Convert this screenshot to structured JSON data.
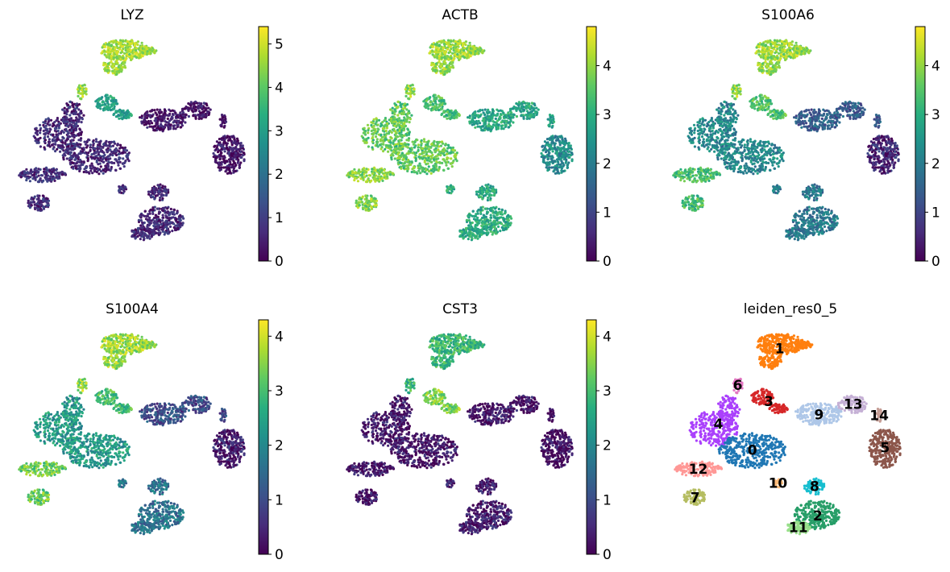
{
  "chart_data": [
    {
      "type": "scatter",
      "title": "LYZ",
      "colorbar": {
        "colormap": "viridis",
        "range": [
          0,
          5.4
        ],
        "ticks": [
          "0",
          "1",
          "2",
          "3",
          "4",
          "5"
        ]
      },
      "levels": {
        "myeloid_top": 4.6,
        "myeloid_stem": 3.0,
        "main_body": 0.6,
        "b_cells": 0.3,
        "t_cells": 0.5,
        "right_cluster": 0.3,
        "bottom_cells": 0.6,
        "left_tip": 0.7
      }
    },
    {
      "type": "scatter",
      "title": "ACTB",
      "colorbar": {
        "colormap": "viridis",
        "range": [
          0,
          4.8
        ],
        "ticks": [
          "0",
          "1",
          "2",
          "3",
          "4"
        ]
      },
      "levels": {
        "myeloid_top": 4.0,
        "myeloid_stem": 3.3,
        "main_body": 3.6,
        "b_cells": 2.8,
        "t_cells": 2.6,
        "right_cluster": 2.3,
        "bottom_cells": 2.9,
        "left_tip": 3.9
      }
    },
    {
      "type": "scatter",
      "title": "S100A6",
      "colorbar": {
        "colormap": "viridis",
        "range": [
          0,
          4.8
        ],
        "ticks": [
          "0",
          "1",
          "2",
          "3",
          "4"
        ]
      },
      "levels": {
        "myeloid_top": 4.0,
        "myeloid_stem": 3.4,
        "main_body": 2.2,
        "b_cells": 1.4,
        "t_cells": 2.6,
        "right_cluster": 0.5,
        "bottom_cells": 1.9,
        "left_tip": 3.3
      }
    },
    {
      "type": "scatter",
      "title": "S100A4",
      "colorbar": {
        "colormap": "viridis",
        "range": [
          0,
          4.3
        ],
        "ticks": [
          "0",
          "1",
          "2",
          "3",
          "4"
        ]
      },
      "levels": {
        "myeloid_top": 3.6,
        "myeloid_stem": 2.9,
        "main_body": 2.3,
        "b_cells": 1.0,
        "t_cells": 2.4,
        "right_cluster": 0.3,
        "bottom_cells": 1.6,
        "left_tip": 3.3
      }
    },
    {
      "type": "scatter",
      "title": "CST3",
      "colorbar": {
        "colormap": "viridis",
        "range": [
          0,
          4.3
        ],
        "ticks": [
          "0",
          "1",
          "2",
          "3",
          "4"
        ]
      },
      "levels": {
        "myeloid_top": 2.8,
        "myeloid_stem": 3.4,
        "main_body": 0.2,
        "b_cells": 0.2,
        "t_cells": 0.8,
        "right_cluster": 0.1,
        "bottom_cells": 0.3,
        "left_tip": 0.2
      }
    },
    {
      "type": "scatter",
      "title": "leiden_res0_5",
      "clusters": [
        {
          "name": "0",
          "color": "#1f77b4"
        },
        {
          "name": "1",
          "color": "#ff7f0e"
        },
        {
          "name": "2",
          "color": "#279e68"
        },
        {
          "name": "3",
          "color": "#d62728"
        },
        {
          "name": "4",
          "color": "#aa40fc"
        },
        {
          "name": "5",
          "color": "#8c564b"
        },
        {
          "name": "6",
          "color": "#e377c2"
        },
        {
          "name": "7",
          "color": "#b5bd61"
        },
        {
          "name": "8",
          "color": "#17becf"
        },
        {
          "name": "9",
          "color": "#aec7e8"
        },
        {
          "name": "10",
          "color": "#ffbb78"
        },
        {
          "name": "11",
          "color": "#98df8a"
        },
        {
          "name": "12",
          "color": "#ff9896"
        },
        {
          "name": "13",
          "color": "#c5b0d5"
        },
        {
          "name": "14",
          "color": "#c49c94"
        }
      ]
    }
  ]
}
